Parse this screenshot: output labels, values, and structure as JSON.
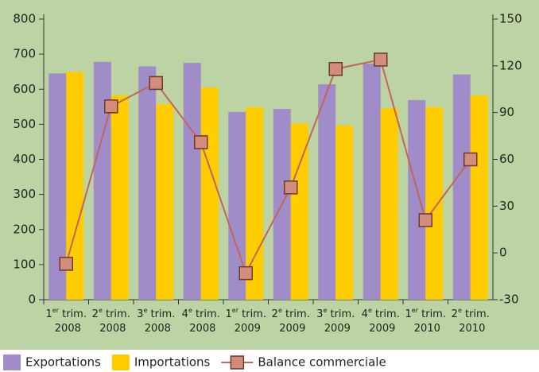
{
  "chart_data": {
    "type": "bar",
    "categories": [
      "1er trim. 2008",
      "2e trim. 2008",
      "3e trim. 2008",
      "4e trim. 2008",
      "1er trim. 2009",
      "2e trim. 2009",
      "3e trim. 2009",
      "4e trim. 2009",
      "1er trim. 2010",
      "2e trim. 2010"
    ],
    "series": [
      {
        "name": "Exportations",
        "type": "bar",
        "color": "#a08cc8",
        "values": [
          645,
          678,
          665,
          675,
          535,
          544,
          614,
          673,
          569,
          642
        ]
      },
      {
        "name": "Importations",
        "type": "bar",
        "color": "#ffcc00",
        "values": [
          650,
          583,
          558,
          605,
          549,
          503,
          497,
          546,
          549,
          583
        ]
      },
      {
        "name": "Balance commerciale",
        "type": "line",
        "axis": "y2",
        "color": "#c0665a",
        "values": [
          -7,
          94,
          109,
          71,
          -13,
          42,
          118,
          124,
          21,
          60
        ]
      }
    ],
    "ylim": [
      0,
      800
    ],
    "yticks": [
      0,
      100,
      200,
      300,
      400,
      500,
      600,
      700,
      800
    ],
    "y2lim": [
      -30,
      150
    ],
    "y2ticks": [
      -30,
      0,
      30,
      60,
      90,
      120,
      150
    ],
    "grid": false
  }
}
